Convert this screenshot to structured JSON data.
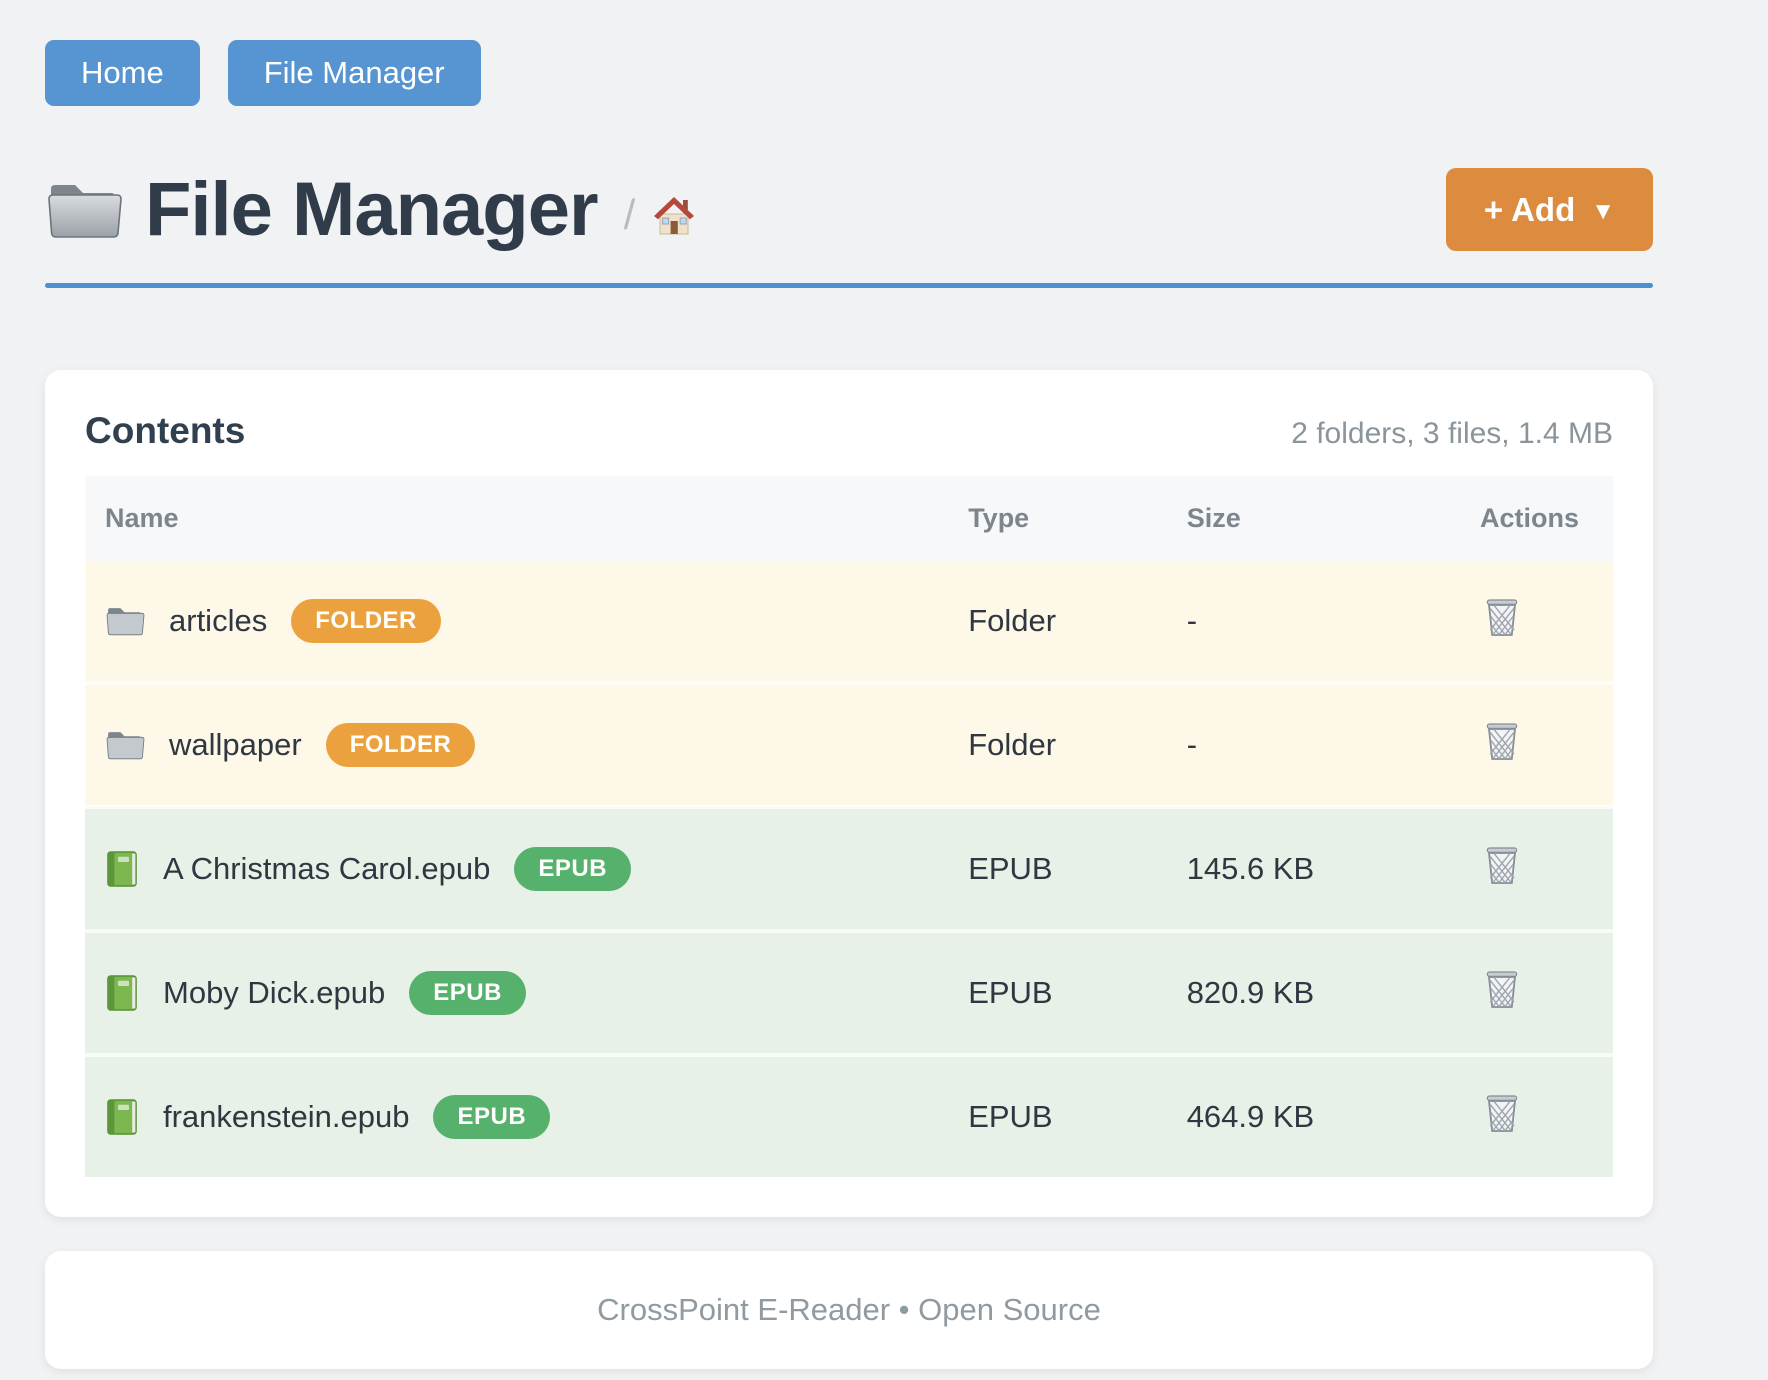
{
  "nav": {
    "buttons": [
      {
        "label": "Home"
      },
      {
        "label": "File Manager"
      }
    ]
  },
  "header": {
    "title": "File Manager",
    "title_icon": "folder-icon",
    "breadcrumb_separator": "/",
    "breadcrumb_home_icon": "home-icon",
    "add_button": {
      "label": "+ Add",
      "caret": "▼"
    }
  },
  "contents": {
    "title": "Contents",
    "summary": "2 folders, 3 files, 1.4 MB",
    "table": {
      "columns": [
        "Name",
        "Type",
        "Size",
        "Actions"
      ],
      "rows": [
        {
          "name": "articles",
          "kind": "folder",
          "icon": "folder-icon",
          "badge": "FOLDER",
          "type": "Folder",
          "size": "-",
          "action_icon": "trash-icon"
        },
        {
          "name": "wallpaper",
          "kind": "folder",
          "icon": "folder-icon",
          "badge": "FOLDER",
          "type": "Folder",
          "size": "-",
          "action_icon": "trash-icon"
        },
        {
          "name": "A Christmas Carol.epub",
          "kind": "epub",
          "icon": "book-icon",
          "badge": "EPUB",
          "type": "EPUB",
          "size": "145.6 KB",
          "action_icon": "trash-icon"
        },
        {
          "name": "Moby Dick.epub",
          "kind": "epub",
          "icon": "book-icon",
          "badge": "EPUB",
          "type": "EPUB",
          "size": "820.9 KB",
          "action_icon": "trash-icon"
        },
        {
          "name": "frankenstein.epub",
          "kind": "epub",
          "icon": "book-icon",
          "badge": "EPUB",
          "type": "EPUB",
          "size": "464.9 KB",
          "action_icon": "trash-icon"
        }
      ]
    }
  },
  "footer": {
    "text": "CrossPoint E-Reader • Open Source"
  },
  "colors": {
    "page_background": "#f1f2f3",
    "nav_button": "#5794d2",
    "add_button": "#dd8b3e",
    "title_underline": "#4a90d2",
    "folder_row_background": "#fdf8e7",
    "epub_row_background": "#e8f1e8",
    "folder_badge": "#eba23e",
    "epub_badge": "#55b16c",
    "table_header_background": "#f6f8fa",
    "table_header_text": "#7d868d",
    "dark_text": "#303c49",
    "muted_text": "#8a949b"
  }
}
